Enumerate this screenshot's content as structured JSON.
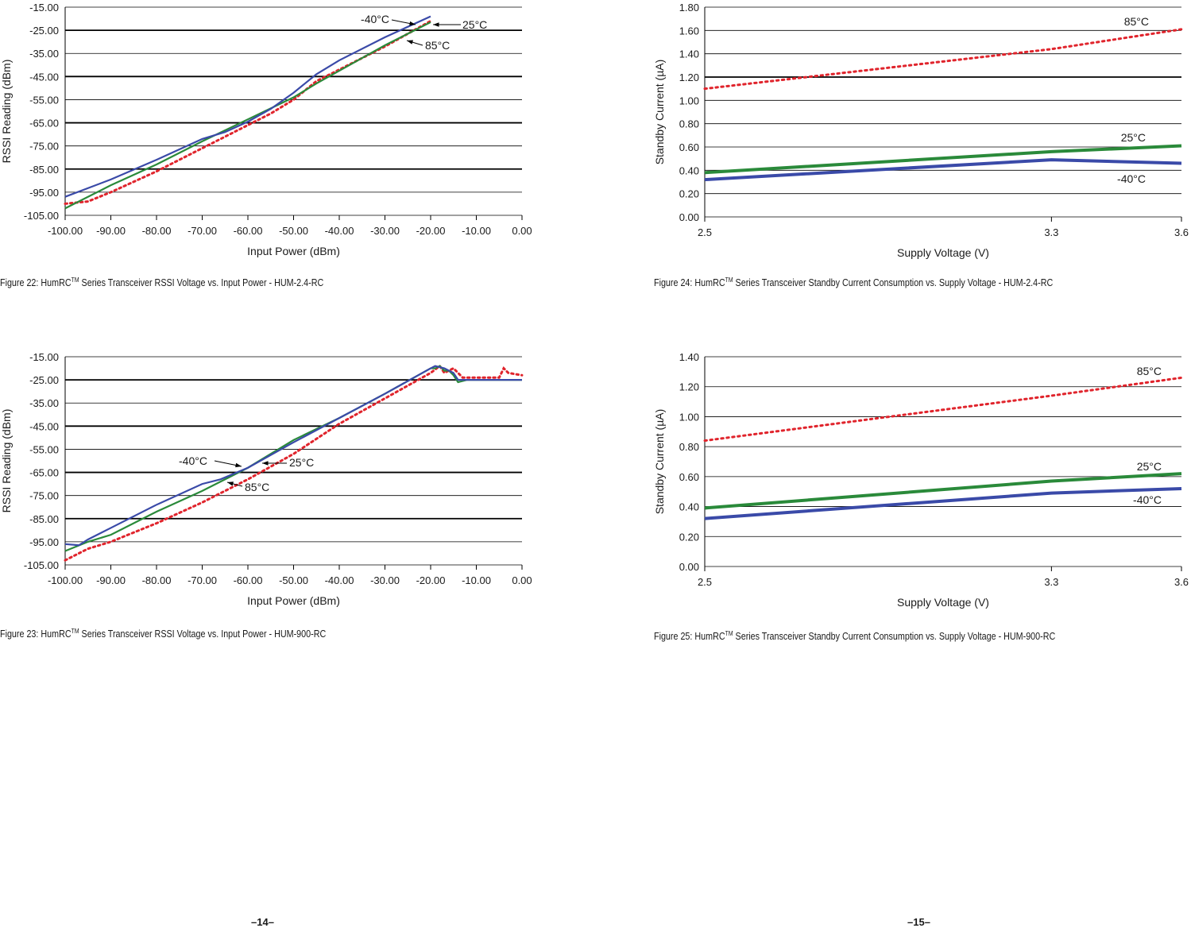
{
  "captions": {
    "fig22": {
      "prefix": "Figure 22: HumRC",
      "tm": "TM",
      "suffix": " Series Transceiver RSSI Voltage vs. Input Power - HUM-2.4-RC"
    },
    "fig23": {
      "prefix": "Figure 23: HumRC",
      "tm": "TM",
      "suffix": " Series Transceiver RSSI Voltage vs. Input Power - HUM-900-RC"
    },
    "fig24": {
      "prefix": "Figure 24: HumRC",
      "tm": "TM",
      "suffix": " Series Transceiver Standby Current Consumption vs. Supply Voltage - HUM-2.4-RC"
    },
    "fig25": {
      "prefix": "Figure 25: HumRC",
      "tm": "TM",
      "suffix": " Series Transceiver Standby Current Consumption vs. Supply Voltage - HUM-900-RC"
    }
  },
  "page_numbers": {
    "left": "–14–",
    "right": "–15–"
  },
  "colors": {
    "neg40": "#3a4aa8",
    "c25": "#2a8a3a",
    "c85": "#e0242c"
  },
  "chart_data": [
    {
      "type": "line",
      "title": "",
      "xlabel": "Input Power (dBm)",
      "ylabel": "RSSI Reading (dBm)",
      "xlim": [
        -100,
        0
      ],
      "ylim": [
        -105,
        -15
      ],
      "x_ticks": [
        "-100.00",
        "-90.00",
        "-80.00",
        "-70.00",
        "-60.00",
        "-50.00",
        "-40.00",
        "-30.00",
        "-20.00",
        "-10.00",
        "0.00"
      ],
      "y_ticks": [
        "-15.00",
        "-25.00",
        "-35.00",
        "-45.00",
        "-55.00",
        "-65.00",
        "-75.00",
        "-85.00",
        "-95.00",
        "-105.00"
      ],
      "series": [
        {
          "name": "-40°C",
          "x": [
            -100,
            -90,
            -80,
            -70,
            -65,
            -60,
            -55,
            -50,
            -45,
            -40,
            -30,
            -20
          ],
          "y": [
            -97,
            -89.5,
            -81,
            -72,
            -69,
            -64.5,
            -59,
            -52,
            -44,
            -38,
            -28,
            -19
          ]
        },
        {
          "name": "25°C",
          "x": [
            -100,
            -90,
            -80,
            -70,
            -60,
            -50,
            -45,
            -40,
            -30,
            -20
          ],
          "y": [
            -102,
            -92,
            -83,
            -73,
            -63.5,
            -54,
            -48,
            -42.5,
            -31.5,
            -21.5
          ]
        },
        {
          "name": "85°C",
          "x": [
            -100,
            -95,
            -90,
            -80,
            -70,
            -60,
            -55,
            -50,
            -45,
            -40,
            -30,
            -20
          ],
          "y": [
            -100,
            -99,
            -95,
            -86,
            -76,
            -66,
            -61,
            -55,
            -47,
            -42,
            -32,
            -21
          ]
        }
      ],
      "annotations": [
        "-40°C",
        "25°C",
        "85°C"
      ]
    },
    {
      "type": "line",
      "title": "",
      "xlabel": "Input Power (dBm)",
      "ylabel": "RSSI Reading (dBm)",
      "xlim": [
        -100,
        0
      ],
      "ylim": [
        -105,
        -15
      ],
      "x_ticks": [
        "-100.00",
        "-90.00",
        "-80.00",
        "-70.00",
        "-60.00",
        "-50.00",
        "-40.00",
        "-30.00",
        "-20.00",
        "-10.00",
        "0.00"
      ],
      "y_ticks": [
        "-15.00",
        "-25.00",
        "-35.00",
        "-45.00",
        "-55.00",
        "-65.00",
        "-75.00",
        "-85.00",
        "-95.00",
        "-105.00"
      ],
      "series": [
        {
          "name": "-40°C",
          "x": [
            -100,
            -97,
            -95,
            -90,
            -80,
            -70,
            -66,
            -60,
            -50,
            -40,
            -30,
            -20,
            -19,
            -17,
            -16,
            -15,
            -14,
            -12,
            0
          ],
          "y": [
            -96,
            -96.5,
            -94,
            -89,
            -79,
            -70,
            -68,
            -63,
            -52,
            -41.5,
            -31,
            -20,
            -19,
            -20,
            -21,
            -22,
            -25,
            -25,
            -25
          ]
        },
        {
          "name": "25°C",
          "x": [
            -100,
            -95,
            -90,
            -80,
            -70,
            -60,
            -50,
            -40,
            -30,
            -20,
            -19,
            -18,
            -17,
            -16,
            -15,
            -14,
            -12,
            0
          ],
          "y": [
            -99,
            -95,
            -92,
            -82,
            -73,
            -63,
            -51,
            -41.5,
            -31,
            -20,
            -20,
            -19,
            -21,
            -21,
            -23,
            -26,
            -25,
            -25
          ]
        },
        {
          "name": "85°C",
          "x": [
            -100,
            -95,
            -90,
            -80,
            -70,
            -60,
            -50,
            -40,
            -30,
            -20,
            -18,
            -17,
            -15,
            -13,
            -10,
            -5,
            -4,
            -3,
            0
          ],
          "y": [
            -103,
            -98,
            -95,
            -87,
            -78,
            -68,
            -57,
            -44,
            -33,
            -22,
            -19,
            -22,
            -20,
            -24,
            -24,
            -24,
            -20,
            -22,
            -23
          ]
        }
      ],
      "annotations": [
        "-40°C",
        "25°C",
        "85°C"
      ]
    },
    {
      "type": "line",
      "title": "",
      "xlabel": "Supply Voltage (V)",
      "ylabel": "Standby Current (µA)",
      "x_ticks": [
        "2.5",
        "3.3",
        "3.6"
      ],
      "ylim": [
        0,
        1.8
      ],
      "y_ticks": [
        "1.80",
        "1.60",
        "1.40",
        "1.20",
        "1.00",
        "0.80",
        "0.60",
        "0.40",
        "0.20",
        "0.00"
      ],
      "series": [
        {
          "name": "-40°C",
          "x": [
            2.5,
            3.3,
            3.6
          ],
          "y": [
            0.32,
            0.49,
            0.46
          ]
        },
        {
          "name": "25°C",
          "x": [
            2.5,
            3.3,
            3.6
          ],
          "y": [
            0.38,
            0.56,
            0.61
          ]
        },
        {
          "name": "85°C",
          "x": [
            2.5,
            3.3,
            3.6
          ],
          "y": [
            1.1,
            1.44,
            1.61
          ]
        }
      ],
      "annotations": [
        "85°C",
        "25°C",
        "-40°C"
      ]
    },
    {
      "type": "line",
      "title": "",
      "xlabel": "Supply Voltage (V)",
      "ylabel": "Standby Current (µA)",
      "x_ticks": [
        "2.5",
        "3.3",
        "3.6"
      ],
      "ylim": [
        0,
        1.4
      ],
      "y_ticks": [
        "1.40",
        "1.20",
        "1.00",
        "0.80",
        "0.60",
        "0.40",
        "0.20",
        "0.00"
      ],
      "series": [
        {
          "name": "-40°C",
          "x": [
            2.5,
            3.3,
            3.6
          ],
          "y": [
            0.32,
            0.49,
            0.52
          ]
        },
        {
          "name": "25°C",
          "x": [
            2.5,
            3.3,
            3.6
          ],
          "y": [
            0.39,
            0.57,
            0.62
          ]
        },
        {
          "name": "85°C",
          "x": [
            2.5,
            3.3,
            3.6
          ],
          "y": [
            0.84,
            1.14,
            1.26
          ]
        }
      ],
      "annotations": [
        "85°C",
        "25°C",
        "-40°C"
      ]
    }
  ]
}
